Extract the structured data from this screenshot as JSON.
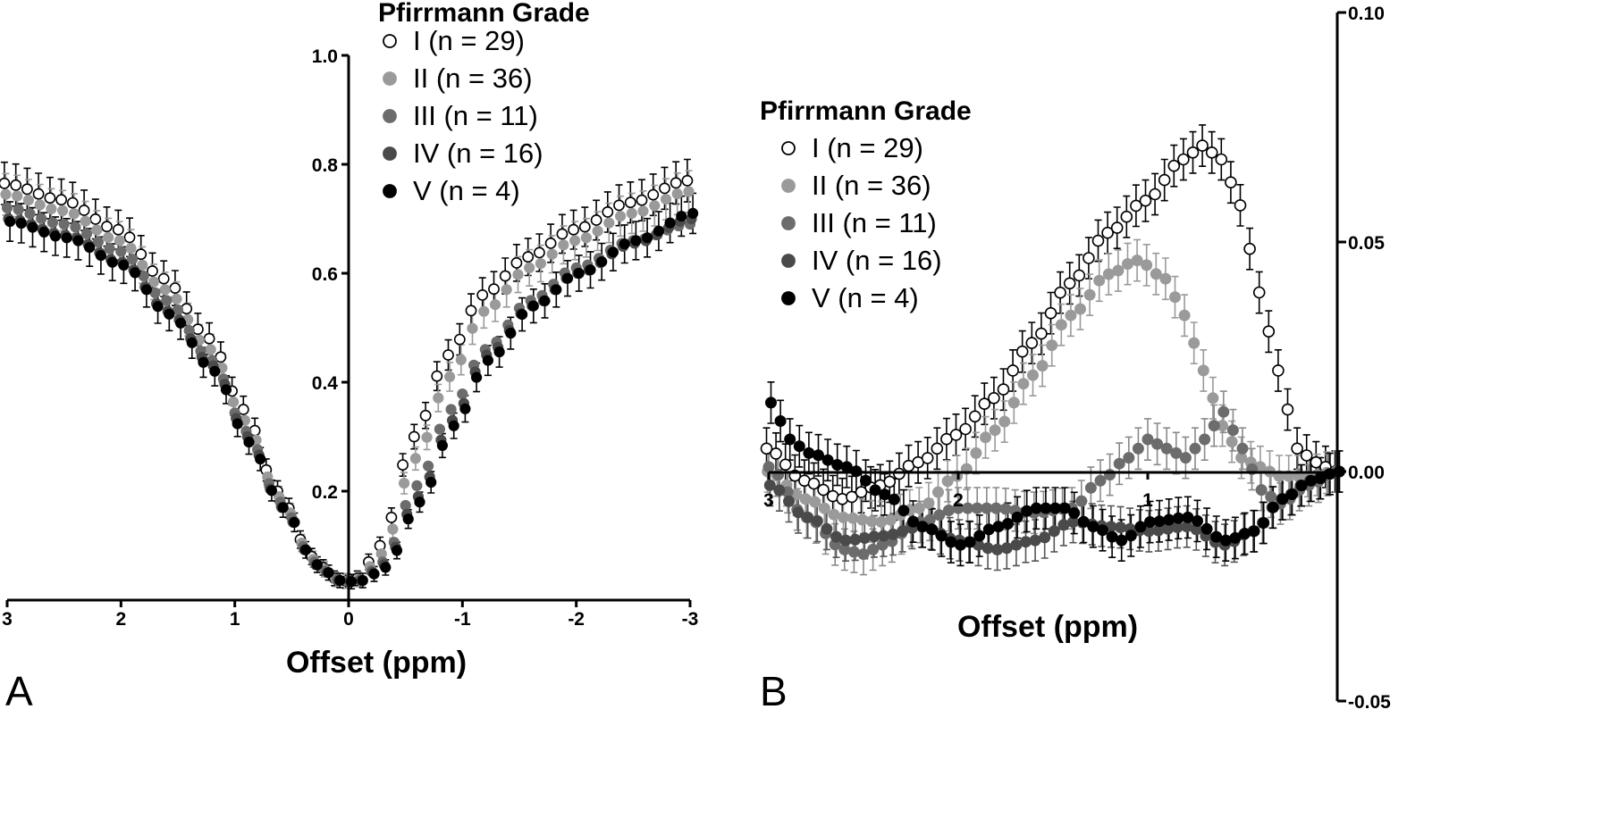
{
  "colors": {
    "grade_I_fill": "#ffffff",
    "grade_II": "#9a9a9a",
    "grade_III": "#6c6c6c",
    "grade_IV": "#4a4a4a",
    "grade_V": "#000000",
    "axis": "#000000"
  },
  "chart_data": [
    {
      "panel": "A",
      "type": "scatter",
      "xlabel": "Offset (ppm)",
      "ylabel": "",
      "xlim": [
        3,
        -3
      ],
      "ylim": [
        0,
        1.0
      ],
      "x_tick_labels": [
        "3",
        "2",
        "1",
        "0",
        "-1",
        "-2",
        "-3"
      ],
      "y_tick_labels": [
        "0.2",
        "0.4",
        "0.6",
        "0.8",
        "1.0"
      ],
      "legend": {
        "title": "Pfirrmann Grade",
        "placement": "top-center",
        "entries": [
          "I   (n = 29)",
          "II  (n = 36)",
          "III (n = 11)",
          "IV (n = 16)",
          "V  (n = 4)"
        ]
      },
      "series": [
        {
          "name": "I   (n = 29)",
          "marker": "open-circle",
          "anchors": [
            [
              3,
              0.765
            ],
            [
              2.5,
              0.735
            ],
            [
              2,
              0.68
            ],
            [
              1.6,
              0.59
            ],
            [
              1.2,
              0.48
            ],
            [
              0.9,
              0.35
            ],
            [
              0.6,
              0.2
            ],
            [
              0.3,
              0.08
            ],
            [
              0.1,
              0.04
            ],
            [
              0,
              0.035
            ],
            [
              -0.1,
              0.04
            ],
            [
              -0.3,
              0.1
            ],
            [
              -0.6,
              0.3
            ],
            [
              -0.9,
              0.45
            ],
            [
              -1.2,
              0.56
            ],
            [
              -1.6,
              0.63
            ],
            [
              -2,
              0.68
            ],
            [
              -2.5,
              0.73
            ],
            [
              -3,
              0.77
            ]
          ]
        },
        {
          "name": "II  (n = 36)",
          "marker": "filled-circle",
          "anchors": [
            [
              3,
              0.745
            ],
            [
              2.5,
              0.715
            ],
            [
              2,
              0.66
            ],
            [
              1.6,
              0.57
            ],
            [
              1.2,
              0.46
            ],
            [
              0.9,
              0.33
            ],
            [
              0.6,
              0.19
            ],
            [
              0.3,
              0.075
            ],
            [
              0.1,
              0.038
            ],
            [
              0,
              0.035
            ],
            [
              -0.1,
              0.038
            ],
            [
              -0.3,
              0.085
            ],
            [
              -0.6,
              0.26
            ],
            [
              -0.9,
              0.41
            ],
            [
              -1.2,
              0.53
            ],
            [
              -1.6,
              0.61
            ],
            [
              -2,
              0.66
            ],
            [
              -2.5,
              0.71
            ],
            [
              -3,
              0.75
            ]
          ]
        },
        {
          "name": "III (n = 11)",
          "marker": "filled-circle",
          "anchors": [
            [
              3,
              0.72
            ],
            [
              2.5,
              0.69
            ],
            [
              2,
              0.64
            ],
            [
              1.6,
              0.55
            ],
            [
              1.2,
              0.44
            ],
            [
              0.9,
              0.31
            ],
            [
              0.6,
              0.18
            ],
            [
              0.3,
              0.07
            ],
            [
              0.1,
              0.037
            ],
            [
              0,
              0.035
            ],
            [
              -0.1,
              0.037
            ],
            [
              -0.3,
              0.07
            ],
            [
              -0.6,
              0.21
            ],
            [
              -0.9,
              0.35
            ],
            [
              -1.2,
              0.46
            ],
            [
              -1.6,
              0.55
            ],
            [
              -2,
              0.61
            ],
            [
              -2.5,
              0.66
            ],
            [
              -3,
              0.69
            ]
          ]
        },
        {
          "name": "IV (n = 16)",
          "marker": "filled-circle",
          "anchors": [
            [
              3,
              0.7
            ],
            [
              2.5,
              0.67
            ],
            [
              2,
              0.62
            ],
            [
              1.6,
              0.53
            ],
            [
              1.2,
              0.43
            ],
            [
              0.9,
              0.3
            ],
            [
              0.6,
              0.17
            ],
            [
              0.3,
              0.065
            ],
            [
              0.1,
              0.036
            ],
            [
              0,
              0.034
            ],
            [
              -0.1,
              0.036
            ],
            [
              -0.3,
              0.065
            ],
            [
              -0.6,
              0.19
            ],
            [
              -0.9,
              0.33
            ],
            [
              -1.2,
              0.45
            ],
            [
              -1.6,
              0.54
            ],
            [
              -2,
              0.6
            ],
            [
              -2.5,
              0.655
            ],
            [
              -3,
              0.7
            ]
          ]
        },
        {
          "name": "V  (n = 4)",
          "marker": "filled-circle",
          "anchors": [
            [
              3,
              0.695
            ],
            [
              2.5,
              0.665
            ],
            [
              2,
              0.615
            ],
            [
              1.6,
              0.525
            ],
            [
              1.2,
              0.42
            ],
            [
              0.9,
              0.29
            ],
            [
              0.6,
              0.17
            ],
            [
              0.3,
              0.065
            ],
            [
              0.1,
              0.036
            ],
            [
              0,
              0.034
            ],
            [
              -0.1,
              0.036
            ],
            [
              -0.3,
              0.06
            ],
            [
              -0.6,
              0.18
            ],
            [
              -0.9,
              0.32
            ],
            [
              -1.2,
              0.44
            ],
            [
              -1.6,
              0.54
            ],
            [
              -2,
              0.6
            ],
            [
              -2.5,
              0.66
            ],
            [
              -3,
              0.71
            ]
          ]
        }
      ]
    },
    {
      "panel": "B",
      "type": "scatter",
      "xlabel": "Offset (ppm)",
      "ylabel": "",
      "xlim": [
        3,
        0
      ],
      "ylim": [
        -0.05,
        0.1
      ],
      "x_tick_labels": [
        "3",
        "2",
        "1"
      ],
      "y_tick_labels": [
        "0.10",
        "0.05",
        "0.00",
        "-0.05"
      ],
      "legend": {
        "title": "Pfirrmann Grade",
        "placement": "top-left",
        "entries": [
          "I   (n = 29)",
          "II  (n = 36)",
          "III (n = 11)",
          "IV (n = 16)",
          "V  (n = 4)"
        ]
      },
      "series": [
        {
          "name": "I   (n = 29)",
          "marker": "open-circle",
          "anchors": [
            [
              3,
              0.005
            ],
            [
              2.8,
              -0.002
            ],
            [
              2.6,
              -0.006
            ],
            [
              2.4,
              -0.003
            ],
            [
              2.2,
              0.002
            ],
            [
              2,
              0.008
            ],
            [
              1.8,
              0.016
            ],
            [
              1.6,
              0.028
            ],
            [
              1.4,
              0.041
            ],
            [
              1.2,
              0.052
            ],
            [
              1,
              0.059
            ],
            [
              0.8,
              0.068
            ],
            [
              0.7,
              0.071
            ],
            [
              0.6,
              0.068
            ],
            [
              0.5,
              0.058
            ],
            [
              0.4,
              0.039
            ],
            [
              0.3,
              0.022
            ],
            [
              0.2,
              0.005
            ],
            [
              0.1,
              0.002
            ],
            [
              0,
              0
            ]
          ]
        },
        {
          "name": "II  (n = 36)",
          "marker": "filled-circle",
          "anchors": [
            [
              3,
              0
            ],
            [
              2.8,
              -0.006
            ],
            [
              2.6,
              -0.01
            ],
            [
              2.4,
              -0.011
            ],
            [
              2.2,
              -0.008
            ],
            [
              2,
              -0.001
            ],
            [
              1.8,
              0.009
            ],
            [
              1.6,
              0.021
            ],
            [
              1.4,
              0.034
            ],
            [
              1.2,
              0.043
            ],
            [
              1.05,
              0.046
            ],
            [
              0.9,
              0.042
            ],
            [
              0.8,
              0.034
            ],
            [
              0.7,
              0.022
            ],
            [
              0.6,
              0.01
            ],
            [
              0.5,
              0.003
            ],
            [
              0.4,
              0.001
            ],
            [
              0.3,
              -0.001
            ],
            [
              0.15,
              -0.001
            ],
            [
              0,
              0
            ]
          ]
        },
        {
          "name": "III (n = 11)",
          "marker": "filled-circle",
          "anchors": [
            [
              3,
              0.001
            ],
            [
              2.8,
              -0.01
            ],
            [
              2.6,
              -0.017
            ],
            [
              2.5,
              -0.018
            ],
            [
              2.4,
              -0.016
            ],
            [
              2.2,
              -0.011
            ],
            [
              2,
              -0.008
            ],
            [
              1.8,
              -0.008
            ],
            [
              1.6,
              -0.009
            ],
            [
              1.4,
              -0.008
            ],
            [
              1.25,
              -0.002
            ],
            [
              1.1,
              0.003
            ],
            [
              1,
              0.007
            ],
            [
              0.9,
              0.005
            ],
            [
              0.8,
              0.003
            ],
            [
              0.7,
              0.007
            ],
            [
              0.6,
              0.013
            ],
            [
              0.5,
              0.005
            ],
            [
              0.4,
              -0.004
            ],
            [
              0.3,
              -0.007
            ],
            [
              0.15,
              -0.003
            ],
            [
              0,
              0
            ]
          ]
        },
        {
          "name": "IV (n = 16)",
          "marker": "filled-circle",
          "anchors": [
            [
              3,
              -0.003
            ],
            [
              2.8,
              -0.01
            ],
            [
              2.6,
              -0.015
            ],
            [
              2.4,
              -0.014
            ],
            [
              2.2,
              -0.012
            ],
            [
              2,
              -0.015
            ],
            [
              1.8,
              -0.017
            ],
            [
              1.6,
              -0.015
            ],
            [
              1.4,
              -0.011
            ],
            [
              1.2,
              -0.012
            ],
            [
              1,
              -0.013
            ],
            [
              0.8,
              -0.012
            ],
            [
              0.6,
              -0.016
            ],
            [
              0.45,
              -0.013
            ],
            [
              0.3,
              -0.006
            ],
            [
              0.15,
              -0.002
            ],
            [
              0,
              0
            ]
          ]
        },
        {
          "name": "V  (n = 4)",
          "marker": "filled-circle",
          "anchors": [
            [
              3,
              0.015
            ],
            [
              2.9,
              0.007
            ],
            [
              2.8,
              0.004
            ],
            [
              2.6,
              0.001
            ],
            [
              2.4,
              -0.005
            ],
            [
              2.2,
              -0.012
            ],
            [
              2,
              -0.016
            ],
            [
              1.8,
              -0.012
            ],
            [
              1.6,
              -0.008
            ],
            [
              1.45,
              -0.008
            ],
            [
              1.3,
              -0.012
            ],
            [
              1.15,
              -0.015
            ],
            [
              1,
              -0.011
            ],
            [
              0.8,
              -0.01
            ],
            [
              0.6,
              -0.015
            ],
            [
              0.45,
              -0.013
            ],
            [
              0.3,
              -0.006
            ],
            [
              0.15,
              -0.002
            ],
            [
              0,
              0
            ]
          ]
        }
      ]
    }
  ]
}
